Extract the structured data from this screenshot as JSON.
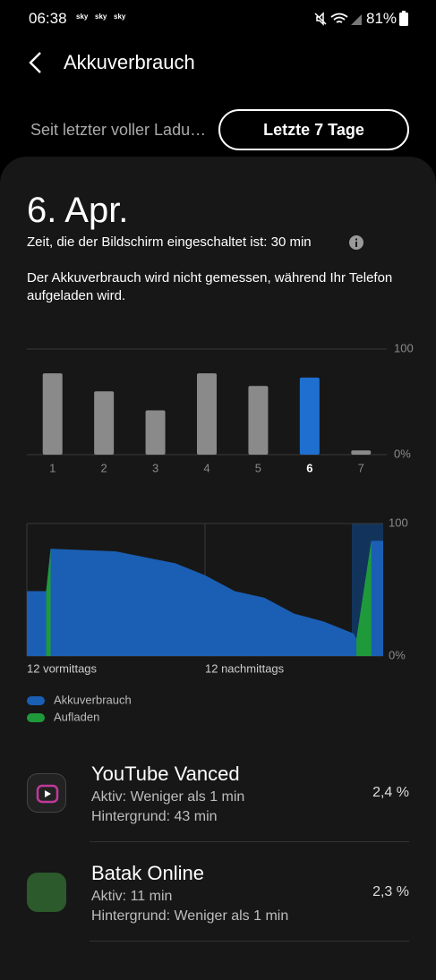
{
  "status": {
    "time": "06:38",
    "carriers": [
      "sky",
      "sky",
      "sky"
    ],
    "battery": "81%"
  },
  "header": {
    "title": "Akkuverbrauch"
  },
  "tabs": [
    "Seit letzter voller Ladu…",
    "Letzte 7 Tage"
  ],
  "date": "6. Apr.",
  "screen_time": "Zeit, die der Bildschirm eingeschaltet ist: 30 min",
  "note": "Der Akkuverbrauch wird nicht gemessen, während Ihr Telefon aufgeladen wird.",
  "chart_data": [
    {
      "type": "bar",
      "categories": [
        "1",
        "2",
        "3",
        "4",
        "5",
        "6",
        "7"
      ],
      "values": [
        77,
        60,
        42,
        77,
        65,
        73,
        4
      ],
      "colors": [
        "#8a8a8a",
        "#8a8a8a",
        "#8a8a8a",
        "#8a8a8a",
        "#8a8a8a",
        "#1e6fd0",
        "#8a8a8a"
      ],
      "ylim": [
        0,
        100
      ],
      "yticks": [
        {
          "value": 0,
          "label": "0%"
        },
        100
      ],
      "grid": true
    },
    {
      "type": "area",
      "x": [
        0,
        1.3,
        1.6,
        6,
        10,
        12,
        14,
        16,
        18,
        20,
        22,
        22.2,
        23.2,
        24
      ],
      "series": [
        {
          "name": "Akkuverbrauch",
          "color": "#1a5fb4",
          "values": [
            49,
            49,
            81,
            79,
            70,
            61,
            49,
            44,
            32,
            26,
            17,
            13,
            87,
            87
          ]
        },
        {
          "name": "Aufladen",
          "color": "#1f9a3a",
          "values": [
            null,
            49,
            81,
            null,
            null,
            null,
            null,
            null,
            null,
            null,
            null,
            13,
            87,
            null
          ]
        }
      ],
      "xlim": [
        0,
        24
      ],
      "xticks": [
        {
          "value": 0,
          "label": "12 vormittags"
        },
        {
          "value": 12,
          "label": "12 nachmittags"
        }
      ],
      "ylim": [
        0,
        100
      ],
      "yticks": [
        {
          "value": 0,
          "label": "0%"
        },
        100
      ],
      "grid": true,
      "legend": "bottom-left"
    }
  ],
  "apps": [
    {
      "name": "YouTube Vanced",
      "active": "Aktiv: Weniger als 1 min",
      "background": "Hintergrund: 43 min",
      "percent": "2,4 %"
    },
    {
      "name": "Batak Online",
      "active": "Aktiv: 11 min",
      "background": "Hintergrund: Weniger als 1 min",
      "percent": "2,3 %"
    }
  ]
}
